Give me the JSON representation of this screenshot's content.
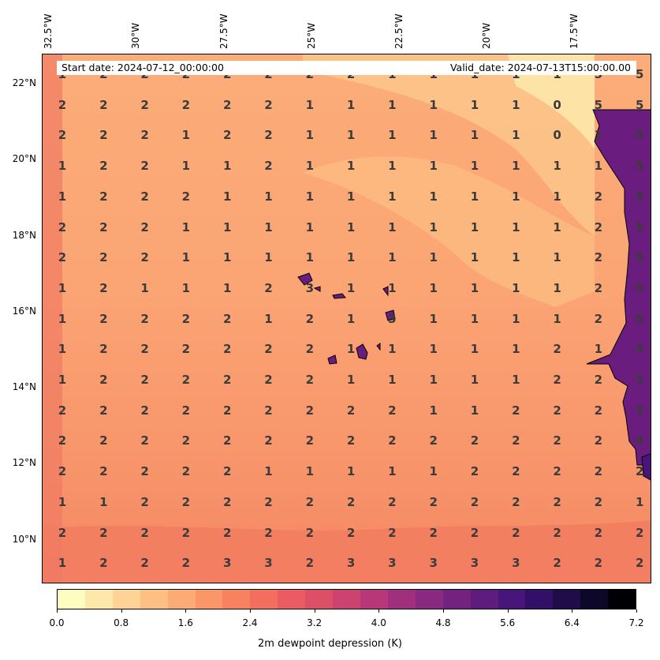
{
  "map": {
    "top_ticks": [
      "32.5°W",
      "30°W",
      "27.5°W",
      "25°W",
      "22.5°W",
      "20°W",
      "17.5°W"
    ],
    "left_ticks": [
      "22°N",
      "20°N",
      "18°N",
      "16°N",
      "14°N",
      "12°N",
      "10°N"
    ],
    "start_date": "Start date: 2024-07-12_00:00:00",
    "valid_date": "Valid_date: 2024-07-13T15:00:00.00",
    "grid_values": [
      [
        "1",
        "2",
        "2",
        "2",
        "2",
        "2",
        "2",
        "2",
        "1",
        "1",
        "1",
        "1",
        "1",
        "5",
        "5"
      ],
      [
        "2",
        "2",
        "2",
        "2",
        "2",
        "2",
        "1",
        "1",
        "1",
        "1",
        "1",
        "1",
        "0",
        "5",
        "5"
      ],
      [
        "2",
        "2",
        "2",
        "1",
        "2",
        "2",
        "1",
        "1",
        "1",
        "1",
        "1",
        "1",
        "0",
        "1",
        "5"
      ],
      [
        "1",
        "2",
        "2",
        "1",
        "1",
        "2",
        "1",
        "1",
        "1",
        "1",
        "1",
        "1",
        "1",
        "1",
        "5"
      ],
      [
        "1",
        "2",
        "2",
        "2",
        "1",
        "1",
        "1",
        "1",
        "1",
        "1",
        "1",
        "1",
        "1",
        "2",
        "5"
      ],
      [
        "2",
        "2",
        "2",
        "1",
        "1",
        "1",
        "1",
        "1",
        "1",
        "1",
        "1",
        "1",
        "1",
        "2",
        "5"
      ],
      [
        "2",
        "2",
        "2",
        "1",
        "1",
        "1",
        "1",
        "1",
        "1",
        "1",
        "1",
        "1",
        "1",
        "2",
        "5"
      ],
      [
        "1",
        "2",
        "1",
        "1",
        "1",
        "2",
        "3",
        "1",
        "1",
        "1",
        "1",
        "1",
        "1",
        "2",
        "5"
      ],
      [
        "1",
        "2",
        "2",
        "2",
        "2",
        "1",
        "2",
        "1",
        "3",
        "1",
        "1",
        "1",
        "1",
        "2",
        "5"
      ],
      [
        "1",
        "2",
        "2",
        "2",
        "2",
        "2",
        "2",
        "1",
        "1",
        "1",
        "1",
        "1",
        "2",
        "1",
        "5"
      ],
      [
        "1",
        "2",
        "2",
        "2",
        "2",
        "2",
        "2",
        "1",
        "1",
        "1",
        "1",
        "1",
        "2",
        "2",
        "5"
      ],
      [
        "2",
        "2",
        "2",
        "2",
        "2",
        "2",
        "2",
        "2",
        "2",
        "1",
        "1",
        "2",
        "2",
        "2",
        "5"
      ],
      [
        "2",
        "2",
        "2",
        "2",
        "2",
        "2",
        "2",
        "2",
        "2",
        "2",
        "2",
        "2",
        "2",
        "2",
        "4"
      ],
      [
        "2",
        "2",
        "2",
        "2",
        "2",
        "1",
        "1",
        "1",
        "1",
        "1",
        "2",
        "2",
        "2",
        "2",
        "2"
      ],
      [
        "1",
        "1",
        "2",
        "2",
        "2",
        "2",
        "2",
        "2",
        "2",
        "2",
        "2",
        "2",
        "2",
        "2",
        "1"
      ],
      [
        "2",
        "2",
        "2",
        "2",
        "2",
        "2",
        "2",
        "2",
        "2",
        "2",
        "2",
        "2",
        "2",
        "2",
        "2"
      ],
      [
        "1",
        "2",
        "2",
        "2",
        "3",
        "3",
        "2",
        "3",
        "3",
        "3",
        "3",
        "3",
        "2",
        "2",
        "2"
      ]
    ]
  },
  "colorbar": {
    "ticks": [
      "0.0",
      "0.8",
      "1.6",
      "2.4",
      "3.2",
      "4.0",
      "4.8",
      "5.6",
      "6.4",
      "7.2"
    ],
    "label": "2m dewpoint depression (K)",
    "min": 0,
    "max": 7.2,
    "colors": [
      "#fcfdbf",
      "#fde7a9",
      "#fed395",
      "#febf84",
      "#fdab74",
      "#fb9669",
      "#f8825f",
      "#f36e5c",
      "#ea5c61",
      "#dd4e67",
      "#cc436f",
      "#b73779",
      "#a0307e",
      "#8a2981",
      "#742280",
      "#5e1c7e",
      "#48157a",
      "#331067",
      "#1f0c48",
      "#0d0829",
      "#000004"
    ]
  }
}
